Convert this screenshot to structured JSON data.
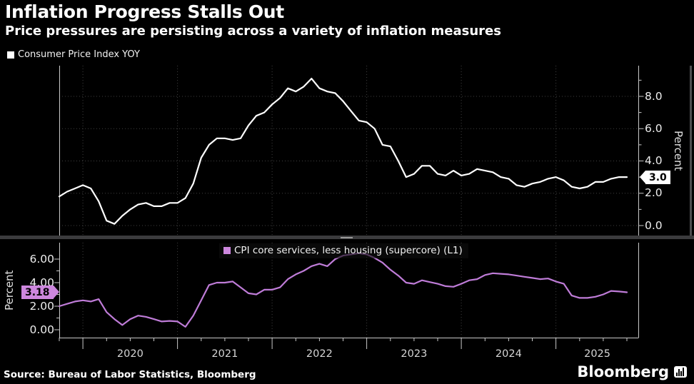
{
  "header": {
    "title": "Inflation Progress Stalls Out",
    "subtitle": "Price pressures are persisting across a variety of inflation measures"
  },
  "top_chart": {
    "legend": "Consumer Price Index YOY",
    "axis_label": "Percent",
    "last_value_label": "3.0",
    "line_color": "#ffffff",
    "y_ticks": [
      {
        "label": "8.0",
        "value": 8
      },
      {
        "label": "6.0",
        "value": 6
      },
      {
        "label": "4.0",
        "value": 4
      },
      {
        "label": "2.0",
        "value": 2
      },
      {
        "label": "0.0",
        "value": 0
      }
    ]
  },
  "bottom_chart": {
    "legend": "CPI core services, less housing (supercore) (L1)",
    "axis_label": "Percent",
    "last_value_label": "3.18",
    "line_color": "#bf7cd8",
    "accent": "#cd87de",
    "y_ticks": [
      {
        "label": "6.00",
        "value": 6
      },
      {
        "label": "4.00",
        "value": 4
      },
      {
        "label": "2.00",
        "value": 2
      },
      {
        "label": "0.00",
        "value": 0
      }
    ]
  },
  "x_axis": {
    "year_labels": [
      "2020",
      "2021",
      "2022",
      "2023",
      "2024",
      "2025"
    ]
  },
  "footer": {
    "source": "Source: Bureau of Labor Statistics, Bloomberg",
    "brand": "Bloomberg"
  },
  "chart_data": [
    {
      "type": "line",
      "title": "Consumer Price Index YOY",
      "x_unit": "month",
      "x_start": "2019-10",
      "x_end": "2025-10",
      "ylabel": "Percent",
      "ylim": [
        0,
        9.9
      ],
      "yticks_major": [
        0,
        2,
        4,
        6,
        8
      ],
      "yticks_minor": [
        1,
        3,
        5,
        7,
        9
      ],
      "grid": "horizontal-and-yearly-vertical-dotted",
      "legend_position": "top-left",
      "last_label": "3.0",
      "values": [
        1.8,
        2.1,
        2.3,
        2.5,
        2.3,
        1.5,
        0.3,
        0.1,
        0.6,
        1.0,
        1.3,
        1.4,
        1.2,
        1.2,
        1.4,
        1.4,
        1.7,
        2.6,
        4.2,
        5.0,
        5.4,
        5.4,
        5.3,
        5.4,
        6.2,
        6.8,
        7.0,
        7.5,
        7.9,
        8.5,
        8.3,
        8.6,
        9.1,
        8.5,
        8.3,
        8.2,
        7.7,
        7.1,
        6.5,
        6.4,
        6.0,
        5.0,
        4.9,
        4.0,
        3.0,
        3.2,
        3.7,
        3.7,
        3.2,
        3.1,
        3.4,
        3.1,
        3.2,
        3.5,
        3.4,
        3.3,
        3.0,
        2.9,
        2.5,
        2.4,
        2.6,
        2.7,
        2.9,
        3.0,
        2.8,
        2.4,
        2.3,
        2.4,
        2.7,
        2.7,
        2.9,
        3.0,
        3.0
      ]
    },
    {
      "type": "line",
      "title": "CPI core services, less housing (supercore) (L1)",
      "x_unit": "month",
      "x_start": "2019-10",
      "x_end": "2025-10",
      "ylabel": "Percent",
      "ylim": [
        0,
        7.4
      ],
      "yticks_major": [
        0,
        2,
        4,
        6
      ],
      "yticks_minor": [
        1,
        3,
        5
      ],
      "grid": "yearly-vertical-dotted",
      "legend_position": "top-center",
      "last_label": "3.18",
      "values": [
        2.0,
        2.2,
        2.4,
        2.5,
        2.4,
        2.6,
        1.5,
        0.9,
        0.4,
        0.9,
        1.2,
        1.1,
        0.9,
        0.7,
        0.75,
        0.7,
        0.25,
        1.2,
        2.5,
        3.8,
        4.0,
        4.0,
        4.1,
        3.6,
        3.1,
        3.0,
        3.4,
        3.4,
        3.6,
        4.3,
        4.7,
        5.0,
        5.4,
        5.6,
        5.4,
        6.0,
        6.3,
        6.4,
        6.5,
        6.4,
        6.1,
        5.7,
        5.1,
        4.6,
        4.0,
        3.9,
        4.2,
        4.05,
        3.9,
        3.7,
        3.65,
        3.9,
        4.2,
        4.3,
        4.65,
        4.8,
        4.75,
        4.7,
        4.6,
        4.5,
        4.4,
        4.3,
        4.35,
        4.1,
        3.9,
        2.9,
        2.7,
        2.7,
        2.8,
        3.0,
        3.3,
        3.25,
        3.18
      ]
    }
  ]
}
